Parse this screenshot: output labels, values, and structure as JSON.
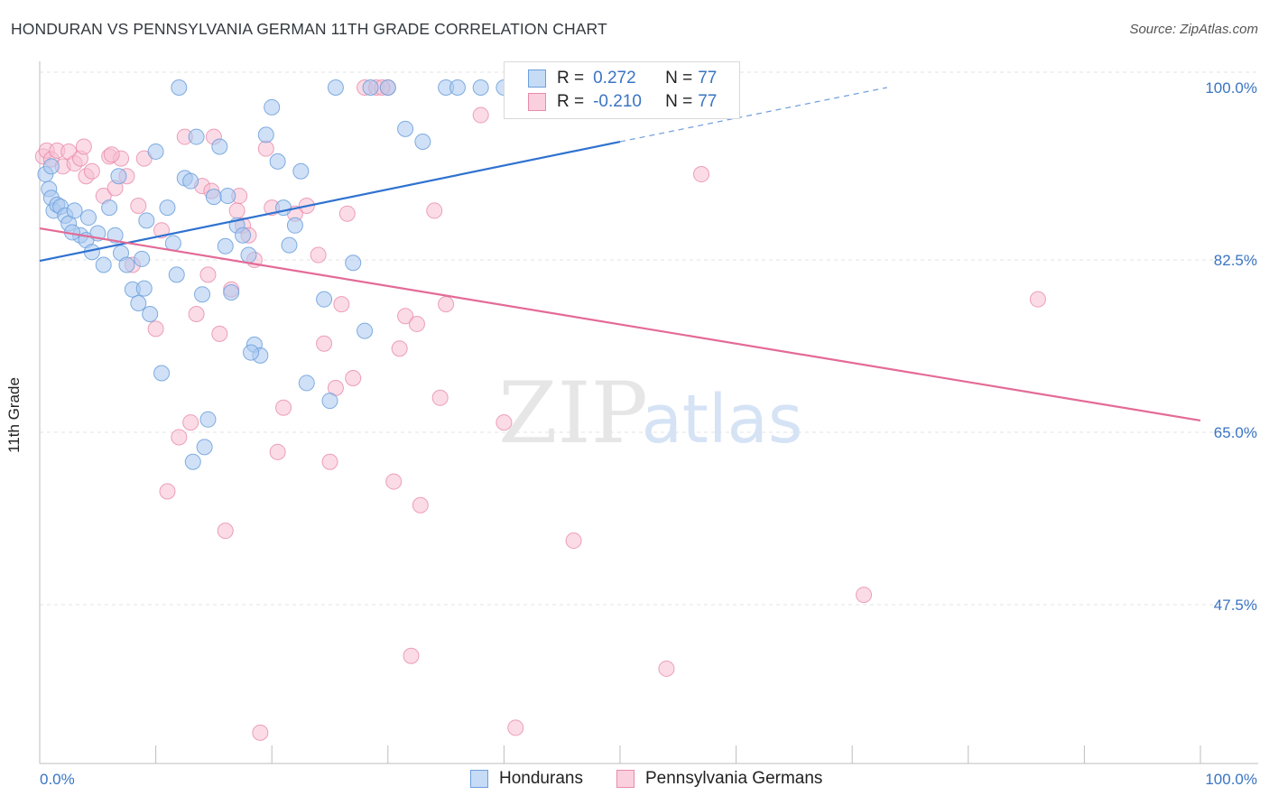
{
  "header": {
    "title": "HONDURAN VS PENNSYLVANIA GERMAN 11TH GRADE CORRELATION CHART",
    "source": "Source: ZipAtlas.com"
  },
  "watermark": {
    "part1": "ZIP",
    "part2": "atlas"
  },
  "colors": {
    "blue_fill": "#a9c8f0",
    "blue_stroke": "#6b9fdc",
    "blue_line": "#2f72d0",
    "pink_fill": "#f7bfd1",
    "pink_stroke": "#e98aaa",
    "pink_line": "#e46a96",
    "axis_label_blue": "#3a74c4",
    "grid": "#e3e3e3"
  },
  "legend_top": {
    "rows": [
      {
        "r_label": "R = ",
        "r_value": " 0.272",
        "n_label": "N = ",
        "n_value": "77"
      },
      {
        "r_label": "R = ",
        "r_value": "-0.210",
        "n_label": "N = ",
        "n_value": "77"
      }
    ]
  },
  "legend_bottom": {
    "items": [
      "Hondurans",
      "Pennsylvania Germans"
    ]
  },
  "chart_data": {
    "type": "scatter",
    "title": "HONDURAN VS PENNSYLVANIA GERMAN 11TH GRADE CORRELATION CHART",
    "xlabel": "",
    "ylabel": "11th Grade",
    "xlim": [
      0,
      100
    ],
    "ylim": [
      31,
      102
    ],
    "x_tick_labels": [
      "0.0%",
      "100.0%"
    ],
    "y_ticks": [
      100,
      82.5,
      65,
      47.5
    ],
    "y_tick_labels": [
      "100.0%",
      "82.5%",
      "65.0%",
      "47.5%"
    ],
    "grid": true,
    "series": [
      {
        "name": "Hondurans",
        "color": "#a9c8f0",
        "trend": {
          "x": [
            0,
            50
          ],
          "y": [
            82.4,
            94.5
          ],
          "dashed_to": [
            73,
            100.0
          ]
        },
        "points": [
          [
            0.5,
            91.2
          ],
          [
            0.8,
            89.7
          ],
          [
            1.0,
            88.8
          ],
          [
            1.2,
            87.5
          ],
          [
            1.5,
            88.1
          ],
          [
            1.8,
            87.9
          ],
          [
            2.2,
            87.0
          ],
          [
            2.5,
            86.2
          ],
          [
            3.0,
            87.5
          ],
          [
            3.5,
            85.0
          ],
          [
            4.0,
            84.5
          ],
          [
            4.5,
            83.3
          ],
          [
            5.0,
            85.2
          ],
          [
            5.5,
            82.0
          ],
          [
            6.0,
            87.8
          ],
          [
            6.5,
            85.0
          ],
          [
            7.0,
            83.2
          ],
          [
            7.5,
            82.0
          ],
          [
            8.0,
            79.5
          ],
          [
            8.5,
            78.1
          ],
          [
            9.0,
            79.6
          ],
          [
            9.5,
            77.0
          ],
          [
            10.0,
            93.5
          ],
          [
            10.5,
            71.0
          ],
          [
            11.0,
            87.8
          ],
          [
            11.5,
            84.2
          ],
          [
            12.0,
            100.0
          ],
          [
            12.5,
            90.8
          ],
          [
            13.0,
            90.5
          ],
          [
            13.5,
            95.0
          ],
          [
            14.0,
            79.0
          ],
          [
            14.5,
            66.3
          ],
          [
            15.0,
            88.9
          ],
          [
            15.5,
            94.0
          ],
          [
            16.0,
            83.9
          ],
          [
            16.5,
            79.2
          ],
          [
            17.0,
            86.0
          ],
          [
            17.5,
            85.0
          ],
          [
            18.0,
            83.0
          ],
          [
            18.5,
            73.9
          ],
          [
            19.0,
            72.8
          ],
          [
            19.5,
            95.2
          ],
          [
            20.0,
            98.0
          ],
          [
            20.5,
            92.5
          ],
          [
            21.0,
            87.8
          ],
          [
            21.5,
            84.0
          ],
          [
            22.0,
            86.0
          ],
          [
            22.5,
            91.5
          ],
          [
            23.0,
            70.0
          ],
          [
            24.5,
            78.5
          ],
          [
            25.0,
            68.2
          ],
          [
            27.0,
            82.2
          ],
          [
            28.0,
            75.3
          ],
          [
            25.5,
            100.0
          ],
          [
            28.5,
            100.0
          ],
          [
            30.0,
            100.0
          ],
          [
            31.5,
            95.8
          ],
          [
            33.0,
            94.5
          ],
          [
            35.0,
            100.0
          ],
          [
            36.0,
            100.0
          ],
          [
            38.0,
            100.0
          ],
          [
            40.0,
            100.0
          ],
          [
            42.0,
            100.0
          ],
          [
            44.0,
            100.0
          ],
          [
            46.0,
            100.0
          ],
          [
            49.0,
            100.0
          ],
          [
            2.8,
            85.3
          ],
          [
            6.8,
            91.0
          ],
          [
            9.2,
            86.5
          ],
          [
            11.8,
            81.0
          ],
          [
            13.2,
            62.0
          ],
          [
            14.2,
            63.5
          ],
          [
            16.2,
            89.0
          ],
          [
            18.2,
            73.1
          ],
          [
            8.8,
            82.6
          ],
          [
            4.2,
            86.8
          ],
          [
            1.0,
            92.0
          ]
        ]
      },
      {
        "name": "Pennsylvania Germans",
        "color": "#f7bfd1",
        "trend": {
          "x": [
            0,
            100
          ],
          "y": [
            85.7,
            66.2
          ]
        },
        "points": [
          [
            0.3,
            93.0
          ],
          [
            0.6,
            93.6
          ],
          [
            1.0,
            92.7
          ],
          [
            1.5,
            93.6
          ],
          [
            2.0,
            92.0
          ],
          [
            2.5,
            93.5
          ],
          [
            3.0,
            92.3
          ],
          [
            3.5,
            92.8
          ],
          [
            4.0,
            91.0
          ],
          [
            4.5,
            91.5
          ],
          [
            5.5,
            89.0
          ],
          [
            6.0,
            93.0
          ],
          [
            6.5,
            89.8
          ],
          [
            7.0,
            92.8
          ],
          [
            7.5,
            91.0
          ],
          [
            8.0,
            82.0
          ],
          [
            8.5,
            88.0
          ],
          [
            9.0,
            92.8
          ],
          [
            10.0,
            75.5
          ],
          [
            10.5,
            85.5
          ],
          [
            11.0,
            59.0
          ],
          [
            12.0,
            64.5
          ],
          [
            12.5,
            95.0
          ],
          [
            13.0,
            66.0
          ],
          [
            13.5,
            77.0
          ],
          [
            14.0,
            90.0
          ],
          [
            14.5,
            81.0
          ],
          [
            15.0,
            95.0
          ],
          [
            15.5,
            75.0
          ],
          [
            16.0,
            55.0
          ],
          [
            16.5,
            79.5
          ],
          [
            17.0,
            87.5
          ],
          [
            17.5,
            86.0
          ],
          [
            18.0,
            85.0
          ],
          [
            18.5,
            82.5
          ],
          [
            19.0,
            34.5
          ],
          [
            19.5,
            93.8
          ],
          [
            20.0,
            87.8
          ],
          [
            20.5,
            63.0
          ],
          [
            21.0,
            67.5
          ],
          [
            22.0,
            87.2
          ],
          [
            23.0,
            88.0
          ],
          [
            24.0,
            83.0
          ],
          [
            24.5,
            74.0
          ],
          [
            25.0,
            62.0
          ],
          [
            25.5,
            69.5
          ],
          [
            26.0,
            78.0
          ],
          [
            26.5,
            87.2
          ],
          [
            27.0,
            70.5
          ],
          [
            28.0,
            100.0
          ],
          [
            29.0,
            100.0
          ],
          [
            30.0,
            100.0
          ],
          [
            30.5,
            60.0
          ],
          [
            31.0,
            73.5
          ],
          [
            31.5,
            76.8
          ],
          [
            32.0,
            42.3
          ],
          [
            32.5,
            76.0
          ],
          [
            32.8,
            57.6
          ],
          [
            34.0,
            87.5
          ],
          [
            34.5,
            68.5
          ],
          [
            35.0,
            78.0
          ],
          [
            38.0,
            97.2
          ],
          [
            40.0,
            66.0
          ],
          [
            41.0,
            35.0
          ],
          [
            46.0,
            54.0
          ],
          [
            48.0,
            100.0
          ],
          [
            54.0,
            41.0
          ],
          [
            55.0,
            100.0
          ],
          [
            58.0,
            100.0
          ],
          [
            57.0,
            91.2
          ],
          [
            71.0,
            48.5
          ],
          [
            86.0,
            78.5
          ],
          [
            29.5,
            100.0
          ],
          [
            14.8,
            89.5
          ],
          [
            17.2,
            89.0
          ],
          [
            3.8,
            94.0
          ],
          [
            6.2,
            93.2
          ]
        ]
      }
    ]
  }
}
